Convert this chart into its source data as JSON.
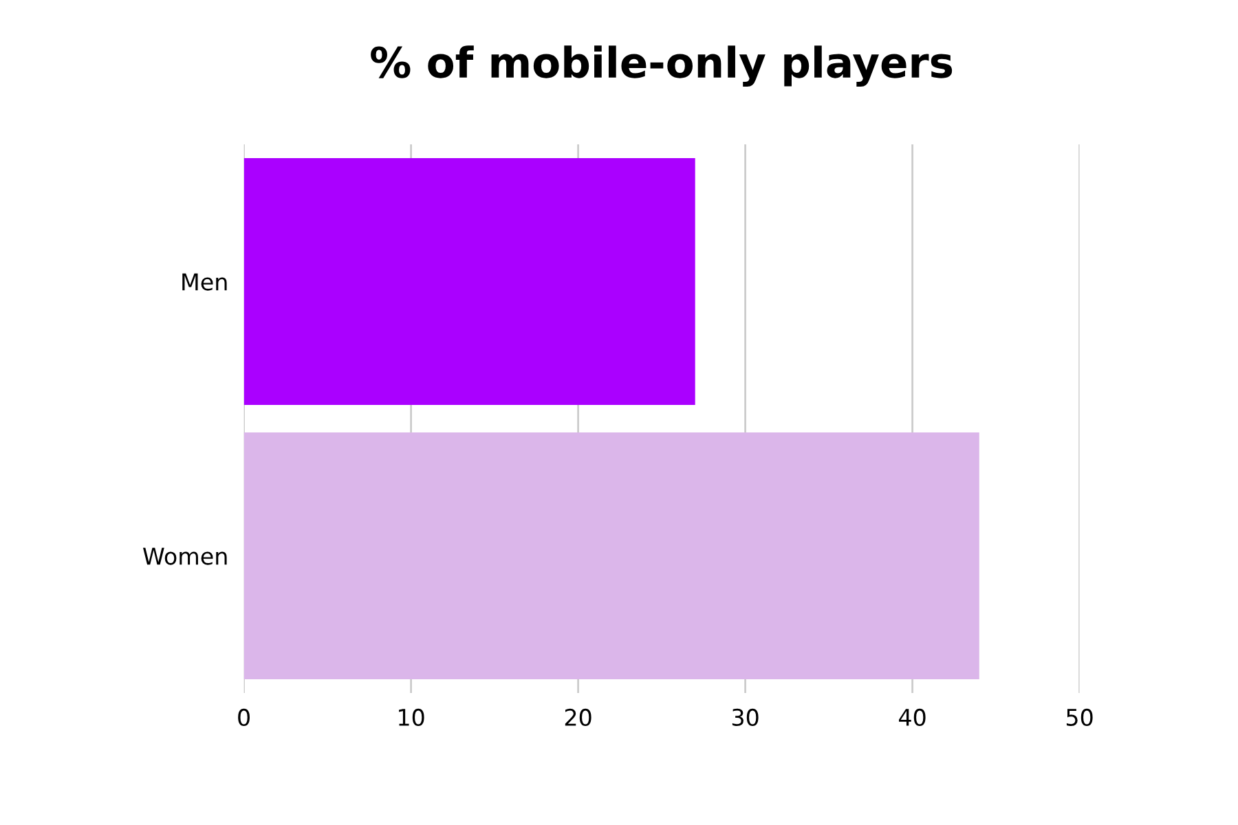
{
  "chart_data": {
    "type": "bar",
    "orientation": "horizontal",
    "title": "% of mobile-only players",
    "categories": [
      "Men",
      "Women"
    ],
    "values": [
      27,
      44
    ],
    "colors": [
      "#aa00ff",
      "#dbb6ea"
    ],
    "xlim": [
      0,
      50
    ],
    "xticks": [
      0,
      10,
      20,
      30,
      40,
      50
    ],
    "grid": "x"
  }
}
